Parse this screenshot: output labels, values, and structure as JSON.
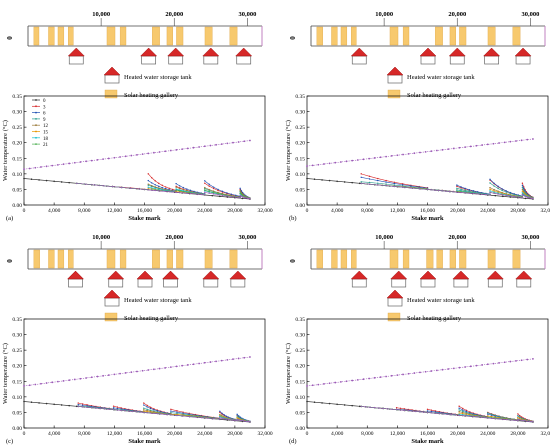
{
  "colors": {
    "gallery": "#f7c96e",
    "gallery_stroke": "#e0a84a",
    "tank_roof": "#d62828",
    "strip_end": "#c080c0",
    "axis": "#000000",
    "series": [
      "#303030",
      "#d62728",
      "#1f4fb4",
      "#2a9d8f",
      "#9a7a3a",
      "#e69500",
      "#17becf",
      "#4caf50",
      "#9b59b6"
    ]
  },
  "legend": {
    "tank": "Heated water storage tank",
    "gallery": "Solar heating gallery"
  },
  "strip": {
    "zero": "0",
    "ticks": [
      {
        "value": 10000,
        "label": "10,000"
      },
      {
        "value": 20000,
        "label": "20,000"
      },
      {
        "value": 30000,
        "label": "30,000"
      }
    ]
  },
  "chart_data": [
    {
      "type": "line",
      "panel_label": "(a)",
      "xlabel": "Stake mark",
      "ylabel": "Water temperature (°C)",
      "xlim": [
        0,
        32000
      ],
      "ylim": [
        0,
        0.35
      ],
      "x_ticks": [
        "0",
        "4,000",
        "8,000",
        "12,000",
        "16,000",
        "20,000",
        "24,000",
        "28,000",
        "32,000"
      ],
      "y_ticks": [
        "0.00",
        "0.05",
        "0.10",
        "0.15",
        "0.20",
        "0.25",
        "0.30",
        "0.35"
      ],
      "legend": [
        "0",
        "3",
        "6",
        "9",
        "12",
        "15",
        "18",
        "21"
      ],
      "galleries": [
        [
          800,
          1500
        ],
        [
          2800,
          3600
        ],
        [
          4100,
          4900
        ],
        [
          5500,
          6200
        ],
        [
          10800,
          11900
        ],
        [
          12600,
          13400
        ],
        [
          17000,
          18000
        ],
        [
          19000,
          19800
        ],
        [
          20300,
          21200
        ],
        [
          24200,
          25200
        ],
        [
          27600,
          28600
        ]
      ],
      "tanks": [
        7000,
        16500,
        20200,
        24000,
        28700
      ],
      "tanks_strip": [
        6600,
        16500,
        20200,
        25000,
        29500
      ],
      "trend": {
        "x": [
          0,
          30000
        ],
        "y": [
          0.115,
          0.207
        ]
      },
      "decay": {
        "start": 0.085,
        "end": 0.019
      },
      "peaks": [
        [
          0.06,
          0.045,
          0.055,
          0.05,
          0.04,
          0.05,
          0.045,
          0.035
        ],
        [
          0.1,
          0.08,
          0.065,
          0.07,
          0.055,
          0.06,
          0.05,
          0.045
        ],
        [
          0.06,
          0.07,
          0.05,
          0.06,
          0.045,
          0.055,
          0.05,
          0.04
        ],
        [
          0.07,
          0.08,
          0.055,
          0.06,
          0.05,
          0.05,
          0.055,
          0.045
        ],
        [
          0.05,
          0.055,
          0.045,
          0.05,
          0.04,
          0.04,
          0.045,
          0.035
        ]
      ]
    },
    {
      "type": "line",
      "panel_label": "(b)",
      "xlabel": "Stake mark",
      "ylabel": "Water temperature (°C)",
      "xlim": [
        0,
        32000
      ],
      "ylim": [
        0,
        0.35
      ],
      "x_ticks": [
        "0",
        "4,000",
        "8,000",
        "12,000",
        "16,000",
        "20,000",
        "24,000",
        "28,000",
        "32,000"
      ],
      "y_ticks": [
        "0.00",
        "0.05",
        "0.10",
        "0.15",
        "0.20",
        "0.25",
        "0.30",
        "0.35"
      ],
      "legend": [],
      "galleries": [
        [
          800,
          1600
        ],
        [
          2800,
          3600
        ],
        [
          4100,
          4900
        ],
        [
          5500,
          6200
        ],
        [
          10800,
          11900
        ],
        [
          12600,
          13400
        ],
        [
          17000,
          18000
        ],
        [
          19000,
          19800
        ],
        [
          20300,
          21200
        ],
        [
          24200,
          25200
        ],
        [
          27600,
          28600
        ]
      ],
      "tanks": [
        7200,
        16000,
        19900,
        24300,
        28600
      ],
      "tanks_strip": [
        6600,
        16000,
        20000,
        24700,
        29000
      ],
      "trend": {
        "x": [
          0,
          30000
        ],
        "y": [
          0.125,
          0.212
        ]
      },
      "decay": {
        "start": 0.085,
        "end": 0.019
      },
      "peaks": [
        [
          0.1,
          0.09,
          0.075,
          0.065,
          0.06,
          0.05,
          0.055,
          0.045
        ],
        [
          0.05,
          0.045,
          0.05,
          0.04,
          0.045,
          0.04,
          0.035,
          0.04
        ],
        [
          0.06,
          0.065,
          0.055,
          0.05,
          0.045,
          0.05,
          0.045,
          0.04
        ],
        [
          0.08,
          0.085,
          0.075,
          0.06,
          0.055,
          0.05,
          0.045,
          0.045
        ],
        [
          0.07,
          0.065,
          0.06,
          0.055,
          0.05,
          0.045,
          0.04,
          0.04
        ]
      ]
    },
    {
      "type": "line",
      "panel_label": "(c)",
      "xlabel": "Stake mark",
      "ylabel": "Water temperature (°C)",
      "xlim": [
        0,
        32000
      ],
      "ylim": [
        0,
        0.35
      ],
      "x_ticks": [
        "0",
        "4,000",
        "8,000",
        "12,000",
        "16,000",
        "20,000",
        "24,000",
        "28,000",
        "32,000"
      ],
      "y_ticks": [
        "0.00",
        "0.05",
        "0.10",
        "0.15",
        "0.20",
        "0.25",
        "0.30",
        "0.35"
      ],
      "legend": [],
      "galleries": [
        [
          800,
          1600
        ],
        [
          2800,
          3600
        ],
        [
          4100,
          4900
        ],
        [
          5500,
          6200
        ],
        [
          10800,
          11900
        ],
        [
          12600,
          13400
        ],
        [
          17000,
          18000
        ],
        [
          19000,
          19800
        ],
        [
          20300,
          21200
        ],
        [
          24200,
          25200
        ],
        [
          27600,
          28600
        ]
      ],
      "tanks": [
        7200,
        11900,
        15900,
        19500,
        26000,
        28300
      ],
      "tanks_strip": [
        6500,
        12000,
        16000,
        19500,
        25000,
        28700
      ],
      "trend": {
        "x": [
          0,
          30000
        ],
        "y": [
          0.135,
          0.228
        ]
      },
      "decay": {
        "start": 0.085,
        "end": 0.019
      },
      "peaks": [
        [
          0.08,
          0.075,
          0.07,
          0.06,
          0.055,
          0.05,
          0.045,
          0.04
        ],
        [
          0.07,
          0.065,
          0.06,
          0.055,
          0.05,
          0.045,
          0.045,
          0.04
        ],
        [
          0.08,
          0.075,
          0.065,
          0.06,
          0.055,
          0.05,
          0.05,
          0.045
        ],
        [
          0.06,
          0.055,
          0.05,
          0.045,
          0.045,
          0.04,
          0.04,
          0.035
        ],
        [
          0.05,
          0.055,
          0.045,
          0.04,
          0.045,
          0.04,
          0.035,
          0.035
        ],
        [
          0.04,
          0.045,
          0.04,
          0.035,
          0.035,
          0.03,
          0.03,
          0.03
        ]
      ]
    },
    {
      "type": "line",
      "panel_label": "(d)",
      "xlabel": "Stake mark",
      "ylabel": "Water temperature (°C)",
      "xlim": [
        0,
        32000
      ],
      "ylim": [
        0,
        0.35
      ],
      "x_ticks": [
        "0",
        "4,000",
        "8,000",
        "12,000",
        "16,000",
        "20,000",
        "24,000",
        "28,000",
        "32,000"
      ],
      "y_ticks": [
        "0.00",
        "0.05",
        "0.10",
        "0.15",
        "0.20",
        "0.25",
        "0.30",
        "0.35"
      ],
      "legend": [],
      "galleries": [
        [
          800,
          1600
        ],
        [
          2800,
          3600
        ],
        [
          4100,
          4900
        ],
        [
          5500,
          6200
        ],
        [
          10800,
          11900
        ],
        [
          12600,
          13400
        ],
        [
          15800,
          16700
        ],
        [
          17200,
          18000
        ],
        [
          19000,
          19800
        ],
        [
          20300,
          21200
        ],
        [
          24200,
          25200
        ],
        [
          27600,
          28600
        ]
      ],
      "tanks": [
        7200,
        11900,
        16000,
        20200,
        24000,
        28000
      ],
      "tanks_strip": [
        6600,
        12000,
        16000,
        20500,
        25200,
        29100
      ],
      "trend": {
        "x": [
          0,
          30000
        ],
        "y": [
          0.135,
          0.222
        ]
      },
      "decay": {
        "start": 0.085,
        "end": 0.019
      },
      "peaks": [
        [
          0.06,
          0.055,
          0.05,
          0.045,
          0.045,
          0.04,
          0.04,
          0.035
        ],
        [
          0.065,
          0.06,
          0.055,
          0.05,
          0.045,
          0.045,
          0.04,
          0.04
        ],
        [
          0.06,
          0.055,
          0.05,
          0.045,
          0.045,
          0.04,
          0.04,
          0.035
        ],
        [
          0.07,
          0.065,
          0.06,
          0.055,
          0.05,
          0.045,
          0.04,
          0.04
        ],
        [
          0.05,
          0.045,
          0.05,
          0.04,
          0.04,
          0.035,
          0.035,
          0.03
        ],
        [
          0.045,
          0.04,
          0.04,
          0.035,
          0.035,
          0.03,
          0.03,
          0.03
        ]
      ]
    }
  ]
}
